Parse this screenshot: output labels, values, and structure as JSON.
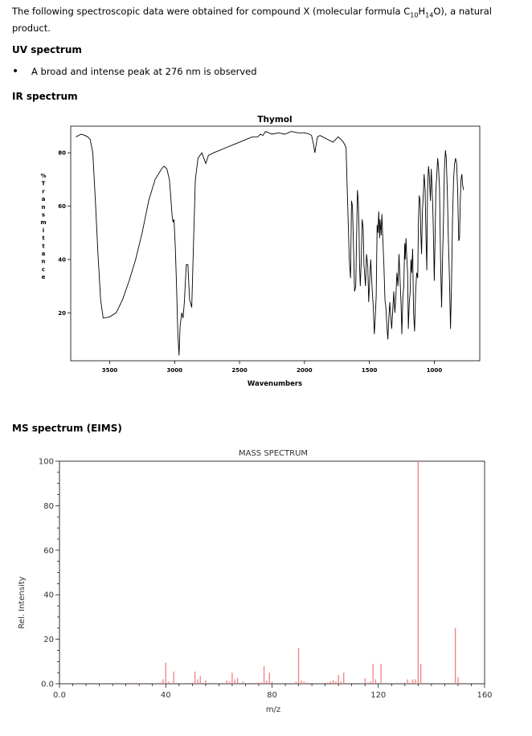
{
  "intro": {
    "text_before": "The following spectroscopic data were obtained for compound X (molecular formula C",
    "sub_c": "10",
    "mid_h": "H",
    "sub_h": "14",
    "text_after": "O), a natural product."
  },
  "uv": {
    "heading": "UV spectrum",
    "bullet": "A broad and intense peak at 276 nm is observed"
  },
  "ir": {
    "heading": "IR spectrum"
  },
  "ms": {
    "heading": "MS spectrum (EIMS)"
  },
  "colors": {
    "ir_line": "#000000",
    "ms_bar": "#f08080"
  },
  "chart_data": [
    {
      "type": "line",
      "title": "Thymol",
      "xlabel": "Wavenumbers",
      "ylabel": "% Transmittance",
      "xlim": [
        3800,
        650
      ],
      "ylim": [
        2,
        90
      ],
      "x_reversed": true,
      "x_ticks": [
        3500,
        3000,
        2500,
        2000,
        1500,
        1000
      ],
      "y_ticks": [
        20,
        40,
        60,
        80
      ],
      "grid": false,
      "points": [
        [
          3760,
          86
        ],
        [
          3720,
          87
        ],
        [
          3690,
          86.5
        ],
        [
          3670,
          86
        ],
        [
          3650,
          85
        ],
        [
          3630,
          80
        ],
        [
          3610,
          62
        ],
        [
          3590,
          42
        ],
        [
          3570,
          25
        ],
        [
          3550,
          18
        ],
        [
          3500,
          18.5
        ],
        [
          3450,
          20
        ],
        [
          3400,
          25
        ],
        [
          3350,
          32
        ],
        [
          3300,
          40
        ],
        [
          3250,
          50
        ],
        [
          3200,
          62
        ],
        [
          3150,
          70
        ],
        [
          3100,
          74
        ],
        [
          3080,
          75
        ],
        [
          3060,
          74
        ],
        [
          3040,
          70
        ],
        [
          3030,
          64
        ],
        [
          3020,
          57
        ],
        [
          3012,
          54
        ],
        [
          3005,
          55
        ],
        [
          2995,
          45
        ],
        [
          2985,
          30
        ],
        [
          2975,
          12
        ],
        [
          2966,
          4
        ],
        [
          2958,
          15
        ],
        [
          2945,
          20
        ],
        [
          2935,
          18
        ],
        [
          2925,
          24
        ],
        [
          2910,
          38
        ],
        [
          2898,
          38
        ],
        [
          2885,
          25
        ],
        [
          2868,
          22
        ],
        [
          2855,
          45
        ],
        [
          2840,
          70
        ],
        [
          2820,
          78
        ],
        [
          2790,
          80
        ],
        [
          2760,
          76
        ],
        [
          2740,
          79
        ],
        [
          2700,
          80
        ],
        [
          2650,
          81
        ],
        [
          2600,
          82
        ],
        [
          2550,
          83
        ],
        [
          2500,
          84
        ],
        [
          2450,
          85
        ],
        [
          2400,
          86
        ],
        [
          2360,
          86
        ],
        [
          2340,
          87
        ],
        [
          2320,
          86.5
        ],
        [
          2300,
          88
        ],
        [
          2250,
          87
        ],
        [
          2200,
          87.5
        ],
        [
          2150,
          87
        ],
        [
          2100,
          88
        ],
        [
          2050,
          87.5
        ],
        [
          2000,
          87.5
        ],
        [
          1960,
          87
        ],
        [
          1945,
          86.5
        ],
        [
          1930,
          83
        ],
        [
          1920,
          80
        ],
        [
          1910,
          83
        ],
        [
          1900,
          86
        ],
        [
          1880,
          86.5
        ],
        [
          1860,
          86
        ],
        [
          1820,
          85
        ],
        [
          1780,
          84
        ],
        [
          1740,
          86
        ],
        [
          1720,
          85
        ],
        [
          1700,
          84
        ],
        [
          1680,
          82
        ],
        [
          1670,
          65
        ],
        [
          1662,
          52
        ],
        [
          1655,
          40
        ],
        [
          1645,
          33
        ],
        [
          1638,
          62
        ],
        [
          1630,
          60
        ],
        [
          1620,
          40
        ],
        [
          1614,
          28
        ],
        [
          1605,
          30
        ],
        [
          1598,
          50
        ],
        [
          1592,
          66
        ],
        [
          1586,
          62
        ],
        [
          1580,
          52
        ],
        [
          1576,
          38
        ],
        [
          1570,
          30
        ],
        [
          1562,
          40
        ],
        [
          1556,
          55
        ],
        [
          1548,
          52
        ],
        [
          1542,
          38
        ],
        [
          1530,
          30
        ],
        [
          1522,
          42
        ],
        [
          1512,
          37
        ],
        [
          1505,
          24
        ],
        [
          1498,
          32
        ],
        [
          1490,
          40
        ],
        [
          1480,
          30
        ],
        [
          1470,
          22
        ],
        [
          1462,
          12
        ],
        [
          1455,
          18
        ],
        [
          1448,
          26
        ],
        [
          1440,
          53
        ],
        [
          1434,
          50
        ],
        [
          1428,
          58
        ],
        [
          1422,
          48
        ],
        [
          1418,
          55
        ],
        [
          1410,
          49
        ],
        [
          1404,
          57
        ],
        [
          1395,
          46
        ],
        [
          1388,
          38
        ],
        [
          1380,
          25
        ],
        [
          1373,
          22
        ],
        [
          1365,
          15
        ],
        [
          1358,
          10
        ],
        [
          1350,
          18
        ],
        [
          1343,
          24
        ],
        [
          1335,
          18
        ],
        [
          1328,
          14
        ],
        [
          1320,
          21
        ],
        [
          1312,
          28
        ],
        [
          1304,
          20
        ],
        [
          1296,
          26
        ],
        [
          1288,
          35
        ],
        [
          1280,
          30
        ],
        [
          1272,
          42
        ],
        [
          1265,
          34
        ],
        [
          1256,
          23
        ],
        [
          1250,
          12
        ],
        [
          1242,
          26
        ],
        [
          1235,
          30
        ],
        [
          1228,
          46
        ],
        [
          1224,
          40
        ],
        [
          1218,
          48
        ],
        [
          1213,
          42
        ],
        [
          1206,
          35
        ],
        [
          1200,
          14
        ],
        [
          1193,
          24
        ],
        [
          1186,
          28
        ],
        [
          1180,
          40
        ],
        [
          1174,
          35
        ],
        [
          1167,
          44
        ],
        [
          1160,
          20
        ],
        [
          1152,
          13
        ],
        [
          1144,
          28
        ],
        [
          1136,
          35
        ],
        [
          1128,
          33
        ],
        [
          1122,
          55
        ],
        [
          1116,
          64
        ],
        [
          1110,
          62
        ],
        [
          1104,
          50
        ],
        [
          1098,
          42
        ],
        [
          1092,
          58
        ],
        [
          1085,
          64
        ],
        [
          1078,
          72
        ],
        [
          1071,
          66
        ],
        [
          1064,
          48
        ],
        [
          1058,
          36
        ],
        [
          1052,
          66
        ],
        [
          1045,
          75
        ],
        [
          1038,
          71
        ],
        [
          1030,
          62
        ],
        [
          1024,
          74
        ],
        [
          1018,
          68
        ],
        [
          1012,
          60
        ],
        [
          1006,
          47
        ],
        [
          1000,
          32
        ],
        [
          994,
          48
        ],
        [
          988,
          66
        ],
        [
          982,
          71
        ],
        [
          974,
          78
        ],
        [
          968,
          75
        ],
        [
          960,
          67
        ],
        [
          952,
          40
        ],
        [
          944,
          22
        ],
        [
          938,
          38
        ],
        [
          930,
          54
        ],
        [
          922,
          74
        ],
        [
          914,
          81
        ],
        [
          908,
          78
        ],
        [
          900,
          66
        ],
        [
          892,
          48
        ],
        [
          884,
          34
        ],
        [
          875,
          14
        ],
        [
          868,
          30
        ],
        [
          860,
          55
        ],
        [
          852,
          70
        ],
        [
          844,
          76
        ],
        [
          836,
          78
        ],
        [
          828,
          76
        ],
        [
          820,
          66
        ],
        [
          812,
          47
        ],
        [
          806,
          48
        ],
        [
          800,
          62
        ],
        [
          794,
          70
        ],
        [
          788,
          72
        ],
        [
          782,
          68
        ],
        [
          775,
          66
        ]
      ]
    },
    {
      "type": "bar",
      "title": "MASS SPECTRUM",
      "xlabel": "m/z",
      "ylabel": "Rel. Intensity",
      "xlim": [
        0,
        160
      ],
      "ylim": [
        0,
        100
      ],
      "x_ticks": [
        0.0,
        40,
        80,
        120,
        160
      ],
      "x_tick_labels": [
        "0.0",
        "40",
        "80",
        "120",
        "160"
      ],
      "y_ticks": [
        0.0,
        20,
        40,
        60,
        80,
        100
      ],
      "y_tick_labels": [
        "0.0",
        "20",
        "40",
        "60",
        "80",
        "100"
      ],
      "grid": false,
      "x": [
        27,
        29,
        38,
        39,
        40,
        41,
        43,
        50,
        51,
        52,
        53,
        55,
        57,
        62,
        63,
        64,
        65,
        66,
        67,
        69,
        74,
        75,
        76,
        77,
        78,
        79,
        80,
        89,
        90,
        91,
        92,
        93,
        101,
        102,
        103,
        104,
        105,
        106,
        107,
        115,
        116,
        117,
        118,
        119,
        121,
        130,
        131,
        132,
        133,
        134,
        135,
        136,
        149,
        150,
        151
      ],
      "values": [
        0.5,
        0.5,
        0.5,
        2,
        9.5,
        1,
        5.5,
        0.5,
        5.5,
        2,
        3.5,
        1.5,
        0.5,
        0.5,
        1.5,
        1,
        5,
        2,
        2.5,
        1,
        0.5,
        0.5,
        0.5,
        8,
        1.5,
        5,
        1,
        1,
        16,
        1.5,
        1,
        0.5,
        0.5,
        1,
        1.5,
        1,
        4,
        1,
        5,
        2.5,
        0.5,
        1,
        9,
        2,
        9,
        0.5,
        2,
        0.5,
        2,
        2,
        100,
        9,
        25,
        3,
        0.5
      ]
    }
  ]
}
